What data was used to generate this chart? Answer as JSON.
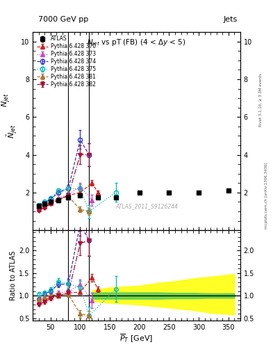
{
  "title_top": "7000 GeV pp",
  "title_right": "Jets",
  "main_title": "N$_{jet}$ vs pT (FB) (4 < $\\Delta$y < 5)",
  "watermark": "ATLAS_2011_S9126244",
  "rivet_label": "Rivet 3.1.10, ≥ 3.3M events",
  "mcplots_label": "mcplots.cern.ch [arXiv:1306.3436]",
  "ylabel_main": "$\\bar{N}_{jet}$",
  "ylabel_ratio": "Ratio to ATLAS",
  "xlabel": "$\\overline{P}_T$ [GeV]",
  "atlas_x": [
    30,
    40,
    50,
    63,
    80,
    100,
    130,
    160,
    200,
    250,
    300,
    350
  ],
  "atlas_y": [
    1.3,
    1.4,
    1.5,
    1.6,
    1.75,
    1.85,
    1.75,
    1.75,
    2.0,
    2.0,
    2.0,
    2.1
  ],
  "atlas_yerr": [
    0.04,
    0.04,
    0.04,
    0.05,
    0.05,
    0.06,
    0.06,
    0.06,
    0.07,
    0.07,
    0.07,
    0.07
  ],
  "series": [
    {
      "label": "Pythia 6.428 370",
      "color": "#cc2222",
      "marker": "^",
      "mfc": "none_no",
      "linestyle": "--",
      "x": [
        30,
        40,
        50,
        63,
        80,
        100,
        120,
        130
      ],
      "y": [
        1.1,
        1.25,
        1.45,
        1.6,
        1.85,
        2.0,
        2.5,
        2.0
      ],
      "yerr": [
        0.04,
        0.04,
        0.05,
        0.06,
        0.07,
        0.08,
        0.15,
        0.1
      ]
    },
    {
      "label": "Pythia 6.428 373",
      "color": "#cc44cc",
      "marker": "^",
      "mfc": "none_no",
      "linestyle": ":",
      "x": [
        30,
        40,
        50,
        63,
        80,
        100,
        120
      ],
      "y": [
        1.15,
        1.35,
        1.5,
        1.7,
        1.9,
        2.3,
        1.6
      ],
      "yerr": [
        0.05,
        0.05,
        0.06,
        0.07,
        0.1,
        0.2,
        0.3
      ]
    },
    {
      "label": "Pythia 6.428 374",
      "color": "#3333cc",
      "marker": "o",
      "mfc": "none_yes",
      "linestyle": "--",
      "x": [
        30,
        40,
        50,
        63,
        80,
        100,
        115
      ],
      "y": [
        1.2,
        1.45,
        1.65,
        2.0,
        2.2,
        4.8,
        4.0
      ],
      "yerr": [
        0.05,
        0.06,
        0.07,
        0.1,
        0.2,
        0.5,
        0.6
      ]
    },
    {
      "label": "Pythia 6.428 375",
      "color": "#00bbbb",
      "marker": "o",
      "mfc": "none_yes",
      "linestyle": ":",
      "x": [
        30,
        40,
        50,
        63,
        80,
        100,
        115,
        160
      ],
      "y": [
        1.35,
        1.5,
        1.7,
        2.1,
        2.2,
        2.2,
        1.0,
        2.0
      ],
      "yerr": [
        0.05,
        0.06,
        0.08,
        0.12,
        0.15,
        0.25,
        0.35,
        0.5
      ]
    },
    {
      "label": "Pythia 6.428 381",
      "color": "#aa7733",
      "marker": "^",
      "mfc": "none_no",
      "linestyle": "--",
      "x": [
        30,
        40,
        50,
        63,
        80,
        100,
        115
      ],
      "y": [
        1.2,
        1.35,
        1.5,
        1.65,
        1.8,
        1.1,
        1.0
      ],
      "yerr": [
        0.05,
        0.05,
        0.06,
        0.07,
        0.1,
        0.15,
        0.2
      ]
    },
    {
      "label": "Pythia 6.428 382",
      "color": "#aa1133",
      "marker": "v",
      "mfc": "none_no",
      "linestyle": "-.",
      "x": [
        30,
        40,
        50,
        63,
        80,
        100,
        115
      ],
      "y": [
        1.05,
        1.2,
        1.4,
        1.6,
        1.85,
        4.0,
        4.0
      ],
      "yerr": [
        0.04,
        0.05,
        0.06,
        0.08,
        0.12,
        0.5,
        0.6
      ]
    }
  ],
  "ratio_band_yellow_x": [
    120,
    150,
    200,
    230,
    260,
    290,
    320,
    360
  ],
  "ratio_band_yellow_y1": [
    0.88,
    0.84,
    0.8,
    0.76,
    0.72,
    0.68,
    0.62,
    0.58
  ],
  "ratio_band_yellow_y2": [
    1.12,
    1.18,
    1.22,
    1.28,
    1.32,
    1.38,
    1.42,
    1.48
  ],
  "ratio_band_green_x": [
    120,
    150,
    200,
    230,
    260,
    290,
    320,
    360
  ],
  "ratio_band_green_y1": [
    0.93,
    0.93,
    0.93,
    0.93,
    0.94,
    0.94,
    0.95,
    0.95
  ],
  "ratio_band_green_y2": [
    1.07,
    1.07,
    1.07,
    1.07,
    1.06,
    1.06,
    1.05,
    1.05
  ],
  "ylim_main": [
    0.0,
    10.5
  ],
  "ylim_ratio": [
    0.45,
    2.45
  ],
  "xlim": [
    20,
    370
  ],
  "yticks_main": [
    2,
    4,
    6,
    8,
    10
  ],
  "yticks_ratio": [
    0.5,
    1.0,
    1.5,
    2.0
  ],
  "vline_x1": 80,
  "vline_x2": 115,
  "bg_color": "#ffffff"
}
